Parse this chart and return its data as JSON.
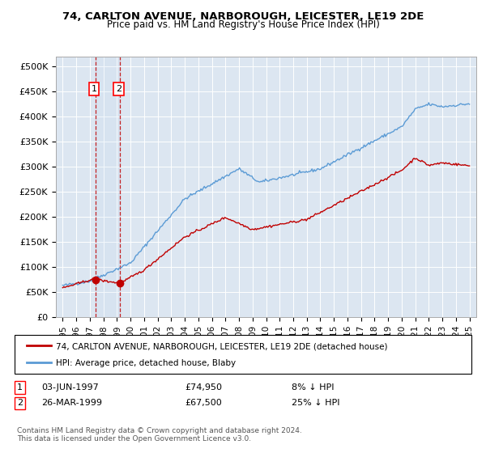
{
  "title1": "74, CARLTON AVENUE, NARBOROUGH, LEICESTER, LE19 2DE",
  "title2": "Price paid vs. HM Land Registry's House Price Index (HPI)",
  "yticks": [
    0,
    50000,
    100000,
    150000,
    200000,
    250000,
    300000,
    350000,
    400000,
    450000,
    500000
  ],
  "ytick_labels": [
    "£0",
    "£50K",
    "£100K",
    "£150K",
    "£200K",
    "£250K",
    "£300K",
    "£350K",
    "£400K",
    "£450K",
    "£500K"
  ],
  "hpi_color": "#5b9bd5",
  "price_color": "#c00000",
  "bg_color": "#dce6f1",
  "transaction1": {
    "date_x": 1997.42,
    "price": 74950
  },
  "transaction2": {
    "date_x": 1999.23,
    "price": 67500
  },
  "legend_line1": "74, CARLTON AVENUE, NARBOROUGH, LEICESTER, LE19 2DE (detached house)",
  "legend_line2": "HPI: Average price, detached house, Blaby",
  "footnote": "Contains HM Land Registry data © Crown copyright and database right 2024.\nThis data is licensed under the Open Government Licence v3.0.",
  "xmin": 1994.5,
  "xmax": 2025.5,
  "ymin": 0,
  "ymax": 520000
}
